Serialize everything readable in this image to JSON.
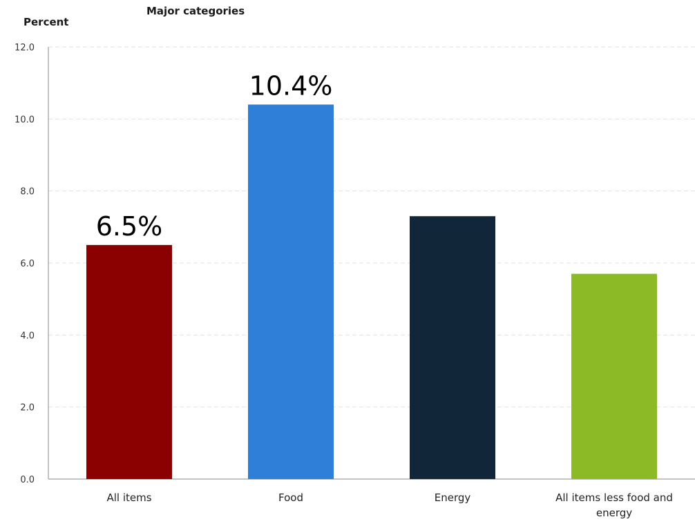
{
  "chart_data": {
    "type": "bar",
    "title": "Major categories",
    "ylabel": "Percent",
    "xlabel": "",
    "categories": [
      "All items",
      "Food",
      "Energy",
      "All items less food and energy"
    ],
    "values": [
      6.5,
      10.4,
      7.3,
      5.7
    ],
    "colors": [
      "#8b0000",
      "#2f7ed8",
      "#12263a",
      "#8cba26"
    ],
    "data_labels": [
      "6.5%",
      "10.4%",
      "",
      ""
    ],
    "ylim": [
      0,
      12
    ],
    "yticks": [
      "0.0",
      "2.0",
      "4.0",
      "6.0",
      "8.0",
      "10.0",
      "12.0"
    ],
    "grid": true,
    "legend": "none"
  }
}
